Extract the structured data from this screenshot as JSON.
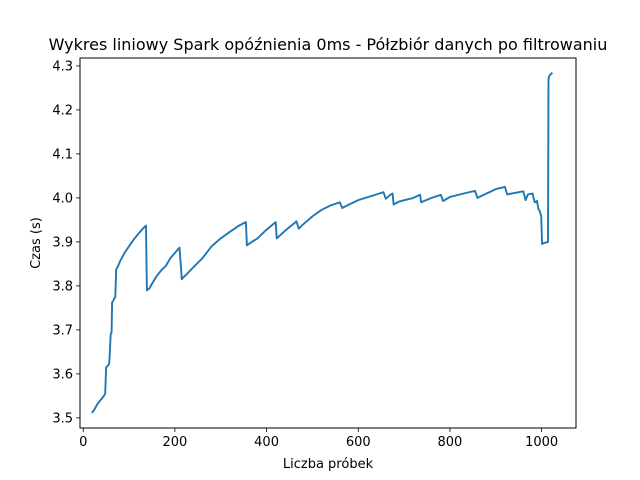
{
  "chart_data": {
    "type": "line",
    "title": "Wykres liniowy Spark opóźnienia 0ms - Półzbiór danych po filtrowaniu",
    "xlabel": "Liczba próbek",
    "ylabel": "Czas (s)",
    "xlim": [
      -7,
      1075
    ],
    "ylim": [
      3.477,
      4.318
    ],
    "xticks": [
      0,
      200,
      400,
      600,
      800,
      1000
    ],
    "yticks": [
      3.5,
      3.6,
      3.7,
      3.8,
      3.9,
      4.0,
      4.1,
      4.2,
      4.3
    ],
    "grid": false,
    "legend": "none",
    "color": "#1f77b4",
    "series": [
      {
        "x": [
          20,
          25,
          30,
          35,
          40,
          45,
          48,
          50,
          55,
          57,
          60,
          62,
          63,
          65,
          67,
          70,
          72,
          75,
          80,
          85,
          90,
          100,
          110,
          120,
          130,
          137,
          139,
          145,
          150,
          160,
          170,
          180,
          190,
          200,
          210,
          215,
          217,
          225,
          240,
          260,
          280,
          300,
          320,
          340,
          355,
          357,
          365,
          380,
          400,
          420,
          422,
          440,
          460,
          465,
          470,
          480,
          500,
          520,
          540,
          560,
          565,
          580,
          600,
          640,
          655,
          660,
          670,
          675,
          677,
          690,
          720,
          735,
          737,
          760,
          780,
          785,
          800,
          830,
          850,
          855,
          860,
          880,
          900,
          920,
          925,
          950,
          960,
          965,
          970,
          980,
          985,
          990,
          993,
          996,
          999,
          1001,
          1004,
          1014,
          1015,
          1017,
          1022
        ],
        "y": [
          3.513,
          3.52,
          3.53,
          3.537,
          3.543,
          3.55,
          3.555,
          3.615,
          3.62,
          3.625,
          3.69,
          3.695,
          3.762,
          3.765,
          3.77,
          3.775,
          3.838,
          3.843,
          3.855,
          3.865,
          3.875,
          3.89,
          3.905,
          3.918,
          3.93,
          3.937,
          3.79,
          3.795,
          3.805,
          3.822,
          3.835,
          3.845,
          3.863,
          3.875,
          3.887,
          3.815,
          3.818,
          3.826,
          3.842,
          3.863,
          3.89,
          3.908,
          3.923,
          3.937,
          3.945,
          3.892,
          3.898,
          3.908,
          3.928,
          3.945,
          3.908,
          3.925,
          3.942,
          3.947,
          3.93,
          3.94,
          3.958,
          3.973,
          3.983,
          3.99,
          3.977,
          3.985,
          3.995,
          4.008,
          4.013,
          3.998,
          4.007,
          4.01,
          3.985,
          3.992,
          4.0,
          4.007,
          3.99,
          4.0,
          4.007,
          3.993,
          4.002,
          4.01,
          4.015,
          4.016,
          4.0,
          4.01,
          4.02,
          4.025,
          4.008,
          4.013,
          4.015,
          3.995,
          4.008,
          4.01,
          3.99,
          3.993,
          3.975,
          3.97,
          3.958,
          3.895,
          3.897,
          3.9,
          4.27,
          4.278,
          4.283
        ]
      }
    ]
  }
}
